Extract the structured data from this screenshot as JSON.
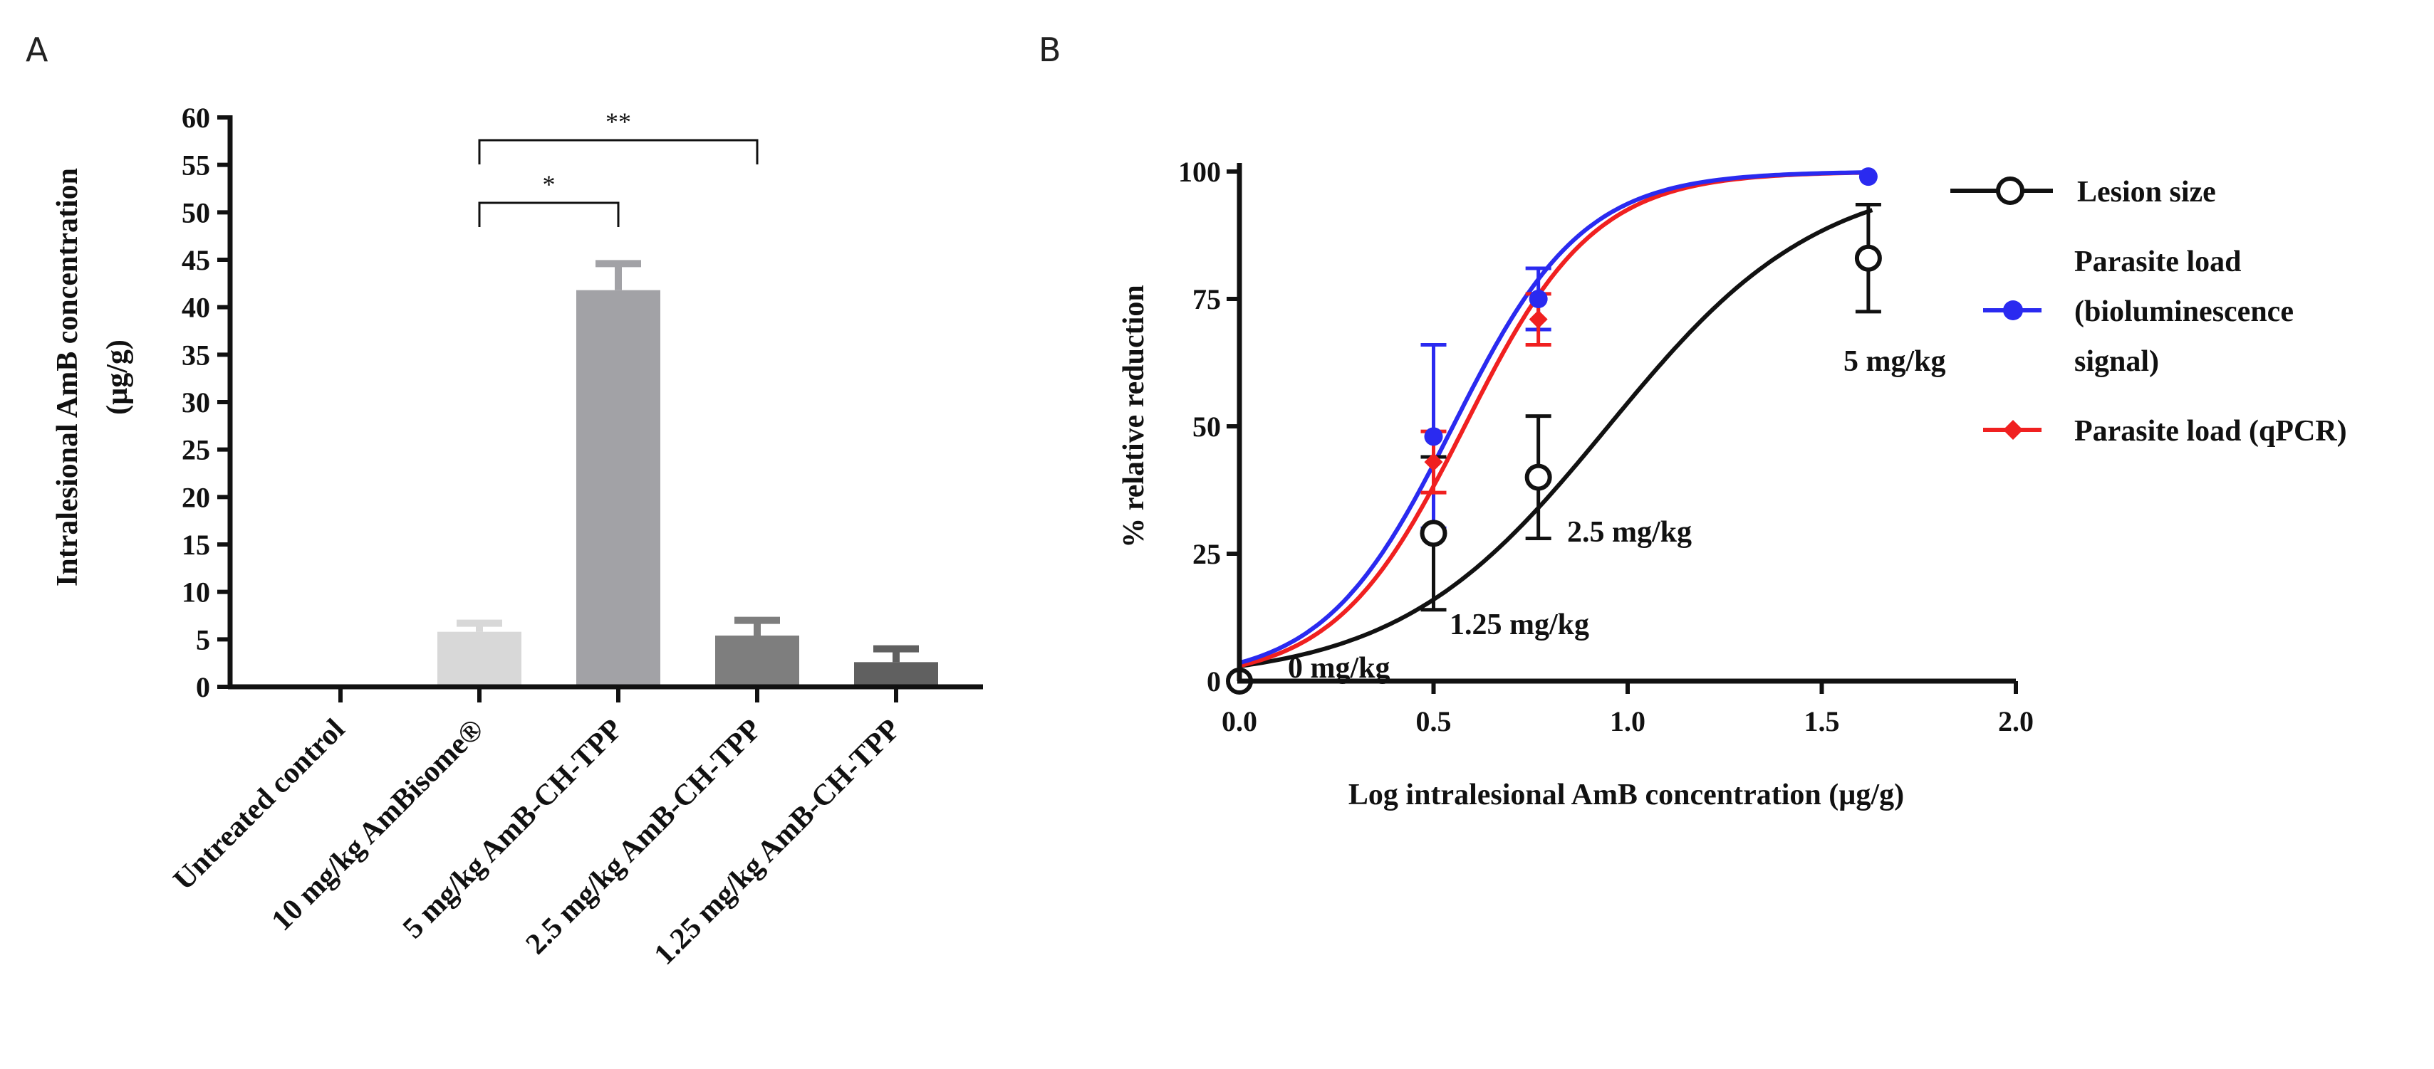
{
  "panels": {
    "a_label": "A",
    "b_label": "B"
  },
  "chart_data": [
    {
      "type": "bar",
      "ylabel_line1": "Intralesional AmB concentration",
      "ylabel_line2": "(µg/g)",
      "ylim": [
        0,
        60
      ],
      "yticks": [
        0,
        5,
        10,
        15,
        20,
        25,
        30,
        35,
        40,
        45,
        50,
        55,
        60
      ],
      "categories": [
        "Untreated control",
        "10 mg/kg AmBisome®",
        "5 mg/kg AmB-CH-TPP",
        "2.5 mg/kg AmB-CH-TPP",
        "1.25 mg/kg AmB-CH-TPP"
      ],
      "values": [
        0,
        5.8,
        41.8,
        5.4,
        2.6
      ],
      "errors": [
        0,
        0.9,
        2.8,
        1.6,
        1.4
      ],
      "bar_colors": [
        "#d8d8d8",
        "#d8d8d8",
        "#a2a2a6",
        "#7e7e7e",
        "#606060"
      ],
      "significance": [
        {
          "from": 1,
          "to": 2,
          "label": "*"
        },
        {
          "from": 1,
          "to": 3,
          "label": "**"
        }
      ]
    },
    {
      "type": "line",
      "xlabel": "Log intralesional AmB concentration (µg/g)",
      "ylabel": "% relative reduction",
      "xlim": [
        0.0,
        2.0
      ],
      "ylim": [
        0,
        100
      ],
      "xticks": [
        "0.0",
        "0.5",
        "1.0",
        "1.5",
        "2.0"
      ],
      "yticks": [
        0,
        25,
        50,
        75,
        100
      ],
      "series": [
        {
          "name": "Lesion size",
          "color": "#111111",
          "marker": "open-circle",
          "points": [
            {
              "x": 0.0,
              "y": 0,
              "err": 0
            },
            {
              "x": 0.5,
              "y": 29,
              "err": 15
            },
            {
              "x": 0.77,
              "y": 40,
              "err": 12
            },
            {
              "x": 1.62,
              "y": 83,
              "err": 10.5
            }
          ],
          "fit": {
            "bottom": 0,
            "top": 100,
            "ec50": 0.95,
            "hill": 1.6
          }
        },
        {
          "name_line1": "Parasite load",
          "name_line2": "(bioluminescence",
          "name_line3": "signal)",
          "color": "#2a2af0",
          "marker": "filled-circle",
          "points": [
            {
              "x": 0.5,
              "y": 48,
              "err": 18
            },
            {
              "x": 0.77,
              "y": 75,
              "err": 6
            },
            {
              "x": 1.62,
              "y": 99,
              "err": 0
            }
          ],
          "fit": {
            "bottom": 0,
            "top": 100,
            "ec50": 0.55,
            "hill": 2.6
          }
        },
        {
          "name": "Parasite load (qPCR)",
          "color": "#f02020",
          "marker": "filled-diamond",
          "points": [
            {
              "x": 0.5,
              "y": 43,
              "err": 6
            },
            {
              "x": 0.77,
              "y": 71,
              "err": 5
            }
          ],
          "fit": {
            "bottom": 0,
            "top": 100,
            "ec50": 0.58,
            "hill": 2.6
          }
        }
      ],
      "annotations": [
        "0 mg/kg",
        "1.25 mg/kg",
        "2.5 mg/kg",
        "5 mg/kg"
      ]
    }
  ]
}
